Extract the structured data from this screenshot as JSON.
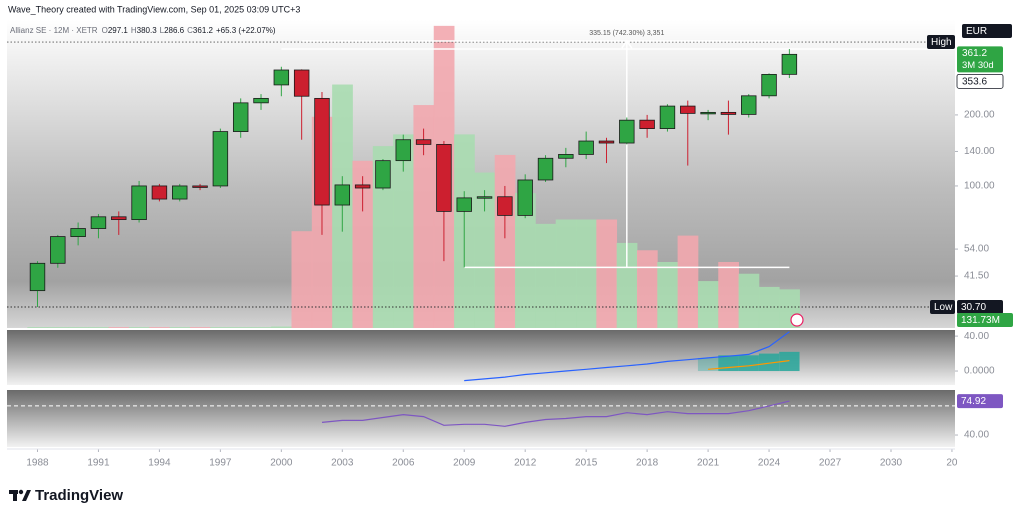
{
  "header": {
    "author_line": "Wave_Theory created with TradingView.com, Sep 01, 2025 03:09 UTC+3"
  },
  "chart_data": {
    "type": "candlestick",
    "symbol": "Allianz SE · 12M · XETR",
    "ohlc_prefixes": [
      "O",
      "H",
      "L",
      "C"
    ],
    "change": "+65.3 (+22.07%)",
    "currency": "EUR",
    "log_scale": true,
    "x": [
      1988,
      1989,
      1990,
      1991,
      1992,
      1993,
      1994,
      1995,
      1996,
      1997,
      1998,
      1999,
      2000,
      2001,
      2002,
      2003,
      2004,
      2005,
      2006,
      2007,
      2008,
      2009,
      2010,
      2011,
      2012,
      2013,
      2014,
      2015,
      2016,
      2017,
      2018,
      2019,
      2020,
      2021,
      2022,
      2023,
      2024,
      2025
    ],
    "open": [
      36,
      47,
      61,
      66,
      74,
      72,
      100,
      88,
      100,
      100,
      170,
      225,
      268,
      310,
      235,
      83,
      101,
      98,
      128,
      157,
      150,
      78,
      89,
      90,
      75,
      106,
      131,
      136,
      155,
      152,
      190,
      175,
      218,
      203,
      205,
      201,
      241,
      297.1
    ],
    "high": [
      48,
      62,
      70,
      76,
      78,
      105,
      102,
      102,
      102,
      175,
      235,
      245,
      320,
      312,
      250,
      110,
      110,
      130,
      165,
      175,
      155,
      95,
      96,
      100,
      112,
      135,
      145,
      170,
      160,
      195,
      200,
      222,
      230,
      210,
      230,
      245,
      300,
      380.3
    ],
    "low": [
      30.7,
      45,
      56,
      60,
      62,
      70,
      86,
      86,
      96,
      98,
      160,
      210,
      240,
      157,
      62,
      64,
      78,
      96,
      115,
      135,
      48,
      45.15,
      78,
      60,
      73,
      104,
      120,
      130,
      125,
      150,
      160,
      170,
      122,
      190,
      165,
      195,
      235,
      286.6
    ],
    "close": [
      47,
      61,
      66,
      74,
      72,
      100,
      88,
      100,
      99,
      170,
      225,
      235,
      310,
      240,
      83,
      101,
      98,
      128,
      157,
      150,
      78,
      89,
      90,
      75,
      106,
      131,
      136,
      155,
      152,
      190,
      175,
      218,
      203,
      205,
      201,
      241,
      297,
      361.2
    ],
    "up_color": "#2fa544",
    "down_color": "#cc1f2f",
    "xlim": [
      1986.5,
      2033.15
    ],
    "xticks": [
      1988,
      1991,
      1994,
      1997,
      2000,
      2003,
      2006,
      2009,
      2012,
      2015,
      2018,
      2021,
      2024,
      2027,
      2030,
      {
        "value": 2033,
        "label": "20"
      }
    ],
    "ylim": [
      25,
      505
    ],
    "yticks": [
      {
        "value": 41.5,
        "label": "41.50"
      },
      {
        "value": 54,
        "label": "54.00"
      },
      {
        "value": 100,
        "label": "100.00"
      },
      {
        "value": 140,
        "label": "140.00"
      },
      {
        "value": 200,
        "label": "200.00"
      }
    ],
    "high_line": {
      "value": 380.3,
      "label": "High"
    },
    "low_line": {
      "value": 30.7,
      "label": "Low",
      "value_label": "30.70"
    },
    "countdown": "3M 30d",
    "secondary_price": 353.6,
    "measure": {
      "from": 45.15,
      "to": 380.3,
      "x_range": [
        2009,
        2025
      ],
      "label": "335.15 (742.30%) 3,351"
    },
    "volume": {
      "values": [
        3,
        3,
        3,
        3,
        3,
        3,
        3,
        3,
        3,
        3,
        3,
        3,
        5,
        330,
        720,
        830,
        570,
        620,
        660,
        760,
        1030,
        660,
        530,
        590,
        460,
        355,
        370,
        370,
        370,
        290,
        265,
        225,
        315,
        160,
        225,
        185,
        140,
        131.73
      ],
      "ylim": [
        0,
        1050
      ],
      "last_label": "131.73M"
    },
    "macd": {
      "type": "line",
      "ylim": [
        -16,
        47
      ],
      "yticks": [
        {
          "value": 0,
          "label": "0.0000"
        },
        {
          "value": 40,
          "label": "40.00"
        }
      ],
      "series": [
        {
          "color": "#2962ff",
          "values": [
            null,
            null,
            null,
            null,
            null,
            null,
            null,
            null,
            null,
            null,
            null,
            null,
            null,
            null,
            null,
            null,
            null,
            null,
            null,
            null,
            null,
            -11,
            -9,
            -7,
            -4,
            -2,
            0,
            2,
            4,
            6,
            8,
            11,
            13,
            15,
            17,
            19,
            28,
            45
          ]
        },
        {
          "color": "#ff9800",
          "values": [
            null,
            null,
            null,
            null,
            null,
            null,
            null,
            null,
            null,
            null,
            null,
            null,
            null,
            null,
            null,
            null,
            null,
            null,
            null,
            null,
            null,
            null,
            null,
            null,
            null,
            null,
            null,
            null,
            null,
            null,
            null,
            null,
            null,
            2,
            4,
            6,
            9,
            12
          ]
        }
      ],
      "histogram": {
        "color": "#26a69a",
        "values": [
          null,
          null,
          null,
          null,
          null,
          null,
          null,
          null,
          null,
          null,
          null,
          null,
          null,
          null,
          null,
          null,
          null,
          null,
          null,
          null,
          null,
          null,
          null,
          null,
          null,
          null,
          null,
          null,
          null,
          null,
          null,
          null,
          null,
          15,
          18,
          18,
          20,
          22
        ]
      }
    },
    "rsi": {
      "type": "line",
      "ylim": [
        27.7,
        86.3
      ],
      "yticks": [
        {
          "value": 40,
          "label": "40.00"
        }
      ],
      "level": 70,
      "series": [
        {
          "color": "#7e57c2",
          "values": [
            null,
            null,
            null,
            null,
            null,
            null,
            null,
            null,
            null,
            null,
            null,
            null,
            null,
            null,
            53,
            55,
            55,
            58,
            61,
            59,
            50,
            51,
            51,
            49,
            53,
            56,
            57,
            59,
            59,
            63,
            61,
            64,
            62,
            62,
            62,
            65,
            70,
            74.92
          ]
        }
      ]
    }
  },
  "footer": {
    "brand": "TradingView"
  }
}
